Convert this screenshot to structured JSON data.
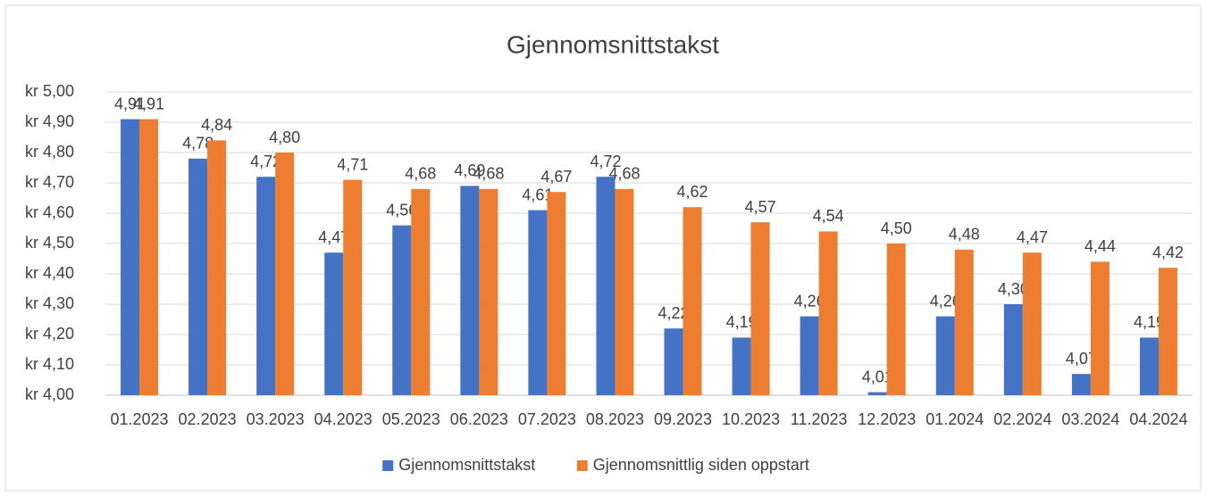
{
  "chart_data": {
    "type": "bar",
    "title": "Gjennomsnittstakst",
    "categories": [
      "01.2023",
      "02.2023",
      "03.2023",
      "04.2023",
      "05.2023",
      "06.2023",
      "07.2023",
      "08.2023",
      "09.2023",
      "10.2023",
      "11.2023",
      "12.2023",
      "01.2024",
      "02.2024",
      "03.2024",
      "04.2024"
    ],
    "series": [
      {
        "name": "Gjennomsnittstakst",
        "color": "#4472c4",
        "values": [
          4.91,
          4.78,
          4.72,
          4.47,
          4.56,
          4.69,
          4.61,
          4.72,
          4.22,
          4.19,
          4.26,
          4.01,
          4.26,
          4.3,
          4.07,
          4.19
        ],
        "value_labels": [
          "4,91",
          "4,78",
          "4,72",
          "4,47",
          "4,56",
          "4,69",
          "4,61",
          "4,72",
          "4,22",
          "4,19",
          "4,26",
          "4,01",
          "4,26",
          "4,30",
          "4,07",
          "4,19"
        ]
      },
      {
        "name": "Gjennomsnittlig siden oppstart",
        "color": "#ed7d31",
        "values": [
          4.91,
          4.84,
          4.8,
          4.71,
          4.68,
          4.68,
          4.67,
          4.68,
          4.62,
          4.57,
          4.54,
          4.5,
          4.48,
          4.47,
          4.44,
          4.42
        ],
        "value_labels": [
          "4,91",
          "4,84",
          "4,80",
          "4,71",
          "4,68",
          "4,68",
          "4,67",
          "4,68",
          "4,62",
          "4,57",
          "4,54",
          "4,50",
          "4,48",
          "4,47",
          "4,44",
          "4,42"
        ]
      }
    ],
    "ylim": [
      4.0,
      5.0
    ],
    "yticks": [
      {
        "value": 4.0,
        "label": "kr 4,00"
      },
      {
        "value": 4.1,
        "label": "kr 4,10"
      },
      {
        "value": 4.2,
        "label": "kr 4,20"
      },
      {
        "value": 4.3,
        "label": "kr 4,30"
      },
      {
        "value": 4.4,
        "label": "kr 4,40"
      },
      {
        "value": 4.5,
        "label": "kr 4,50"
      },
      {
        "value": 4.6,
        "label": "kr 4,60"
      },
      {
        "value": 4.7,
        "label": "kr 4,70"
      },
      {
        "value": 4.8,
        "label": "kr 4,80"
      },
      {
        "value": 4.9,
        "label": "kr 4,90"
      },
      {
        "value": 5.0,
        "label": "kr 5,00"
      }
    ],
    "grid": true,
    "legend": "bottom"
  }
}
